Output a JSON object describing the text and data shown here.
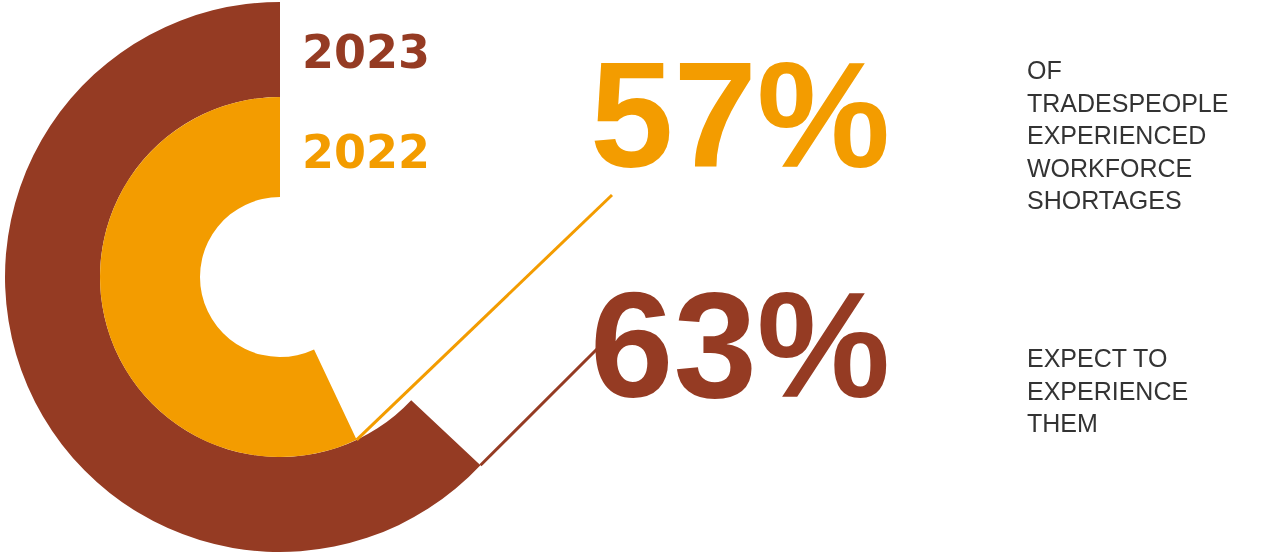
{
  "chart_data": {
    "type": "donut",
    "categories": [
      null
    ],
    "series": [
      {
        "name": "2023",
        "color": "#953b23",
        "values": [
          63
        ],
        "value_labels": [
          "63%"
        ]
      },
      {
        "name": "2022",
        "color": "#f39c00",
        "values": [
          57
        ],
        "value_labels": [
          "57%"
        ]
      }
    ],
    "annotations": [
      "OF\nTRADESPEOPLE\nEXPERIENCED\nWORKFORCE\nSHORTAGES",
      "EXPECT TO\nEXPERIENCE\nTHEM"
    ]
  }
}
